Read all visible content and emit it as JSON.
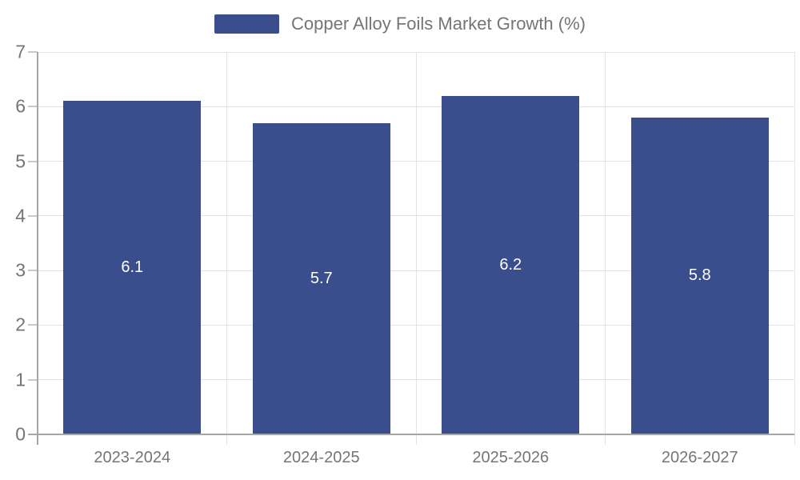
{
  "legend": {
    "label": "Copper Alloy Foils Market Growth (%)"
  },
  "chart_data": {
    "type": "bar",
    "title": "Copper Alloy Foils Market Growth (%)",
    "categories": [
      "2023-2024",
      "2024-2025",
      "2025-2026",
      "2026-2027"
    ],
    "values": [
      6.1,
      5.7,
      6.2,
      5.8
    ],
    "value_labels": [
      "6.1",
      "5.7",
      "6.2",
      "5.8"
    ],
    "xlabel": "",
    "ylabel": "",
    "ylim": [
      0,
      7
    ],
    "yticks": [
      0,
      1,
      2,
      3,
      4,
      5,
      6,
      7
    ],
    "grid": true,
    "legend_position": "top",
    "colors": {
      "bar": "#3A4D8C",
      "value_label": "#ffffff",
      "axis_text": "#757575",
      "gridline": "#e3e3e3",
      "axis_line": "#a6a6a6",
      "tick": "#c9c9c9"
    }
  }
}
